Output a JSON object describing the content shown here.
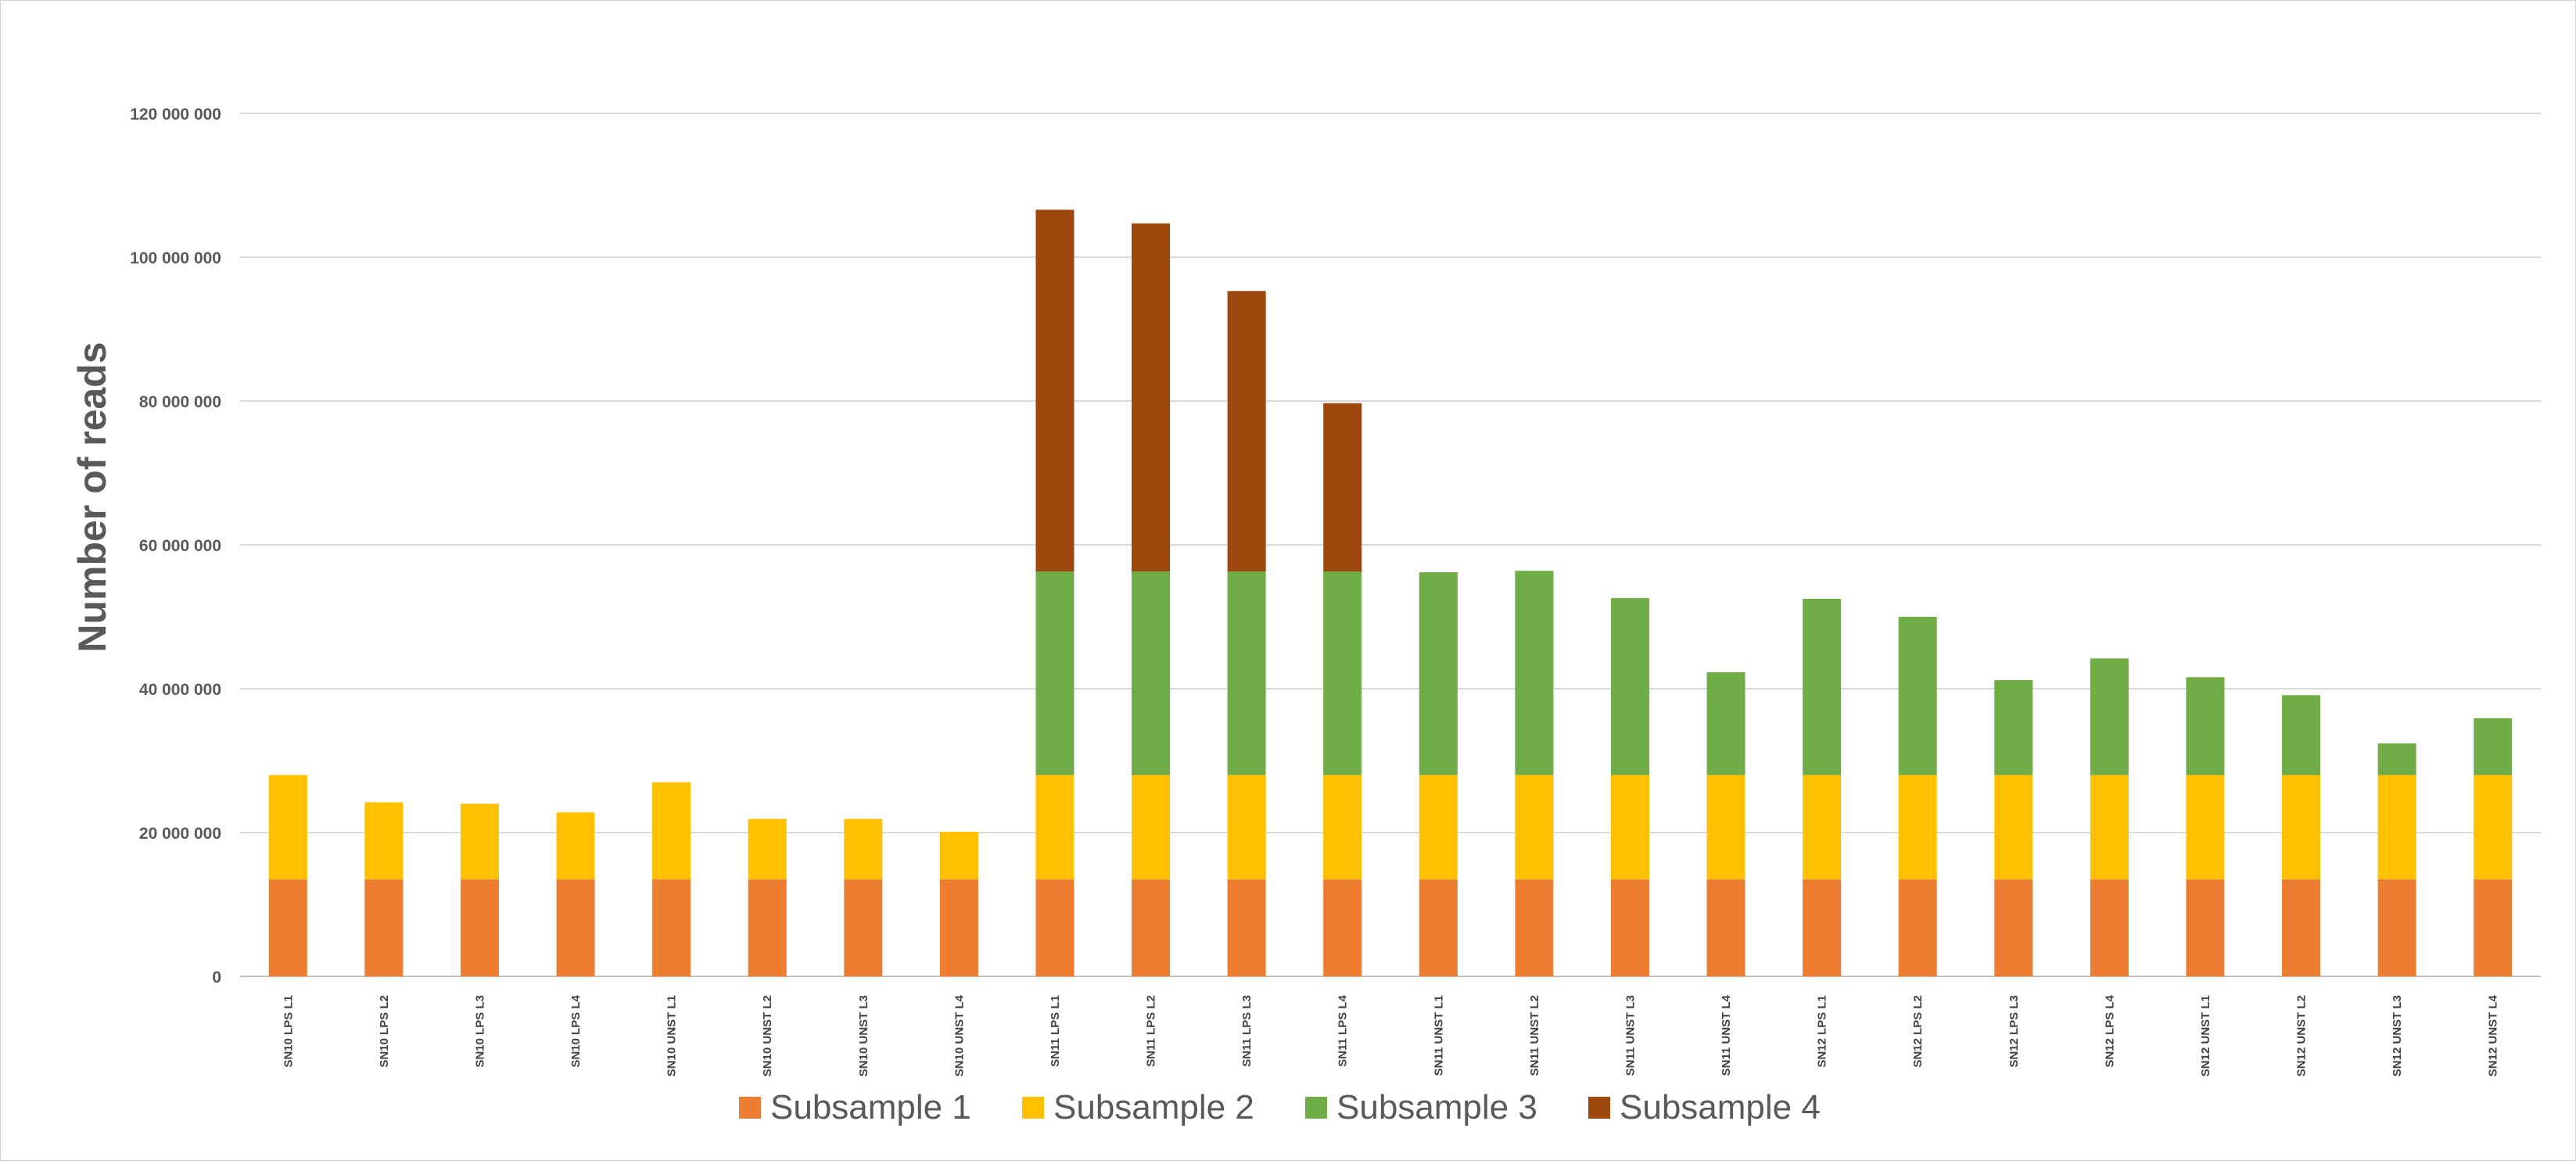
{
  "chart_data": {
    "type": "bar",
    "stacked": true,
    "title": "",
    "xlabel": "",
    "ylabel": "Number of reads",
    "ylim": [
      0,
      120000000
    ],
    "yticks": [
      0,
      20000000,
      40000000,
      60000000,
      80000000,
      100000000,
      120000000
    ],
    "ytick_labels": [
      "0",
      "20 000 000",
      "40 000 000",
      "60 000 000",
      "80 000 000",
      "100 000 000",
      "120 000 000"
    ],
    "grid": true,
    "legend_position": "bottom",
    "categories": [
      "SN10 LPS L1",
      "SN10 LPS L2",
      "SN10 LPS L3",
      "SN10 LPS L4",
      "SN10 UNST L1",
      "SN10 UNST L2",
      "SN10 UNST L3",
      "SN10 UNST L4",
      "SN11 LPS L1",
      "SN11 LPS L2",
      "SN11 LPS L3",
      "SN11 LPS L4",
      "SN11 UNST L1",
      "SN11 UNST L2",
      "SN11 UNST L3",
      "SN11 UNST L4",
      "SN12 LPS L1",
      "SN12 LPS L2",
      "SN12 LPS L3",
      "SN12 LPS L4",
      "SN12 UNST L1",
      "SN12 UNST L2",
      "SN12 UNST L3",
      "SN12 UNST L4"
    ],
    "series": [
      {
        "name": "Subsample 1",
        "color": "#ED7D31",
        "values": [
          13500000,
          13500000,
          13500000,
          13500000,
          13500000,
          13500000,
          13500000,
          13500000,
          13500000,
          13500000,
          13500000,
          13500000,
          13500000,
          13500000,
          13500000,
          13500000,
          13500000,
          13500000,
          13500000,
          13500000,
          13500000,
          13500000,
          13500000,
          13500000
        ]
      },
      {
        "name": "Subsample 2",
        "color": "#FFC000",
        "values": [
          14500000,
          10700000,
          10500000,
          9300000,
          13500000,
          8400000,
          8400000,
          6600000,
          14500000,
          14500000,
          14500000,
          14500000,
          14500000,
          14500000,
          14500000,
          14500000,
          14500000,
          14500000,
          14500000,
          14500000,
          14500000,
          14500000,
          14500000,
          14500000
        ]
      },
      {
        "name": "Subsample 3",
        "color": "#70AD47",
        "values": [
          0,
          0,
          0,
          0,
          0,
          0,
          0,
          0,
          28300000,
          28300000,
          28300000,
          28300000,
          28200000,
          28400000,
          24600000,
          14300000,
          24500000,
          22000000,
          13200000,
          16200000,
          13600000,
          11100000,
          4400000,
          7900000
        ]
      },
      {
        "name": "Subsample 4",
        "color": "#9E480E",
        "values": [
          0,
          0,
          0,
          0,
          0,
          0,
          0,
          0,
          50300000,
          48400000,
          39000000,
          23400000,
          0,
          0,
          0,
          0,
          0,
          0,
          0,
          0,
          0,
          0,
          0,
          0
        ]
      }
    ]
  }
}
